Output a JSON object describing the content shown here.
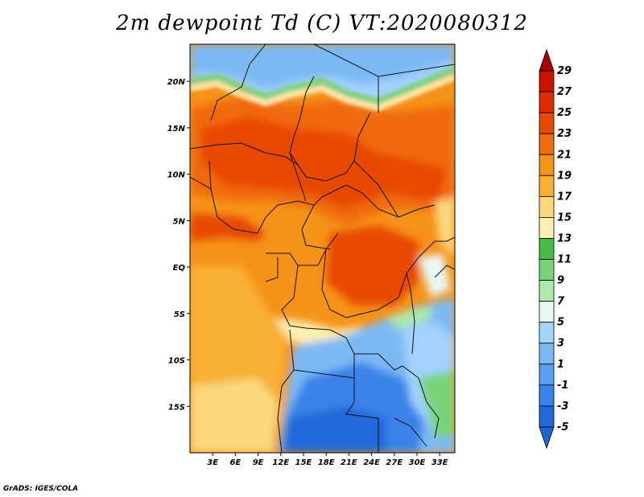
{
  "title": "2m dewpoint Td (C) VT:2020080312",
  "credit": "GrADS: IGES/COLA",
  "map": {
    "lon_range": [
      0,
      35
    ],
    "lat_range": [
      -20,
      24
    ],
    "x_ticks": [
      {
        "lon": 3,
        "label": "3E"
      },
      {
        "lon": 6,
        "label": "6E"
      },
      {
        "lon": 9,
        "label": "9E"
      },
      {
        "lon": 12,
        "label": "12E"
      },
      {
        "lon": 15,
        "label": "15E"
      },
      {
        "lon": 18,
        "label": "18E"
      },
      {
        "lon": 21,
        "label": "21E"
      },
      {
        "lon": 24,
        "label": "24E"
      },
      {
        "lon": 27,
        "label": "27E"
      },
      {
        "lon": 30,
        "label": "30E"
      },
      {
        "lon": 33,
        "label": "33E"
      }
    ],
    "y_ticks": [
      {
        "lat": 20,
        "label": "20N"
      },
      {
        "lat": 15,
        "label": "15N"
      },
      {
        "lat": 10,
        "label": "10N"
      },
      {
        "lat": 5,
        "label": "5N"
      },
      {
        "lat": 0,
        "label": "EQ"
      },
      {
        "lat": -5,
        "label": "5S"
      },
      {
        "lat": -10,
        "label": "10S"
      },
      {
        "lat": -15,
        "label": "15S"
      }
    ]
  },
  "colorbar": {
    "levels": [
      "29",
      "27",
      "25",
      "23",
      "21",
      "19",
      "17",
      "15",
      "13",
      "11",
      "9",
      "7",
      "5",
      "3",
      "1",
      "-1",
      "-3",
      "-5"
    ],
    "colors": [
      "#a50000",
      "#c81400",
      "#dc2c00",
      "#e84a06",
      "#f06a10",
      "#f59218",
      "#f8b035",
      "#fcd77e",
      "#fdf0b0",
      "#47bc47",
      "#79d479",
      "#aee8ae",
      "#e8f8f4",
      "#a3d2ff",
      "#7bb9f4",
      "#5a9ff0",
      "#3b83e8",
      "#2367d8",
      "#1f63d4"
    ]
  }
}
